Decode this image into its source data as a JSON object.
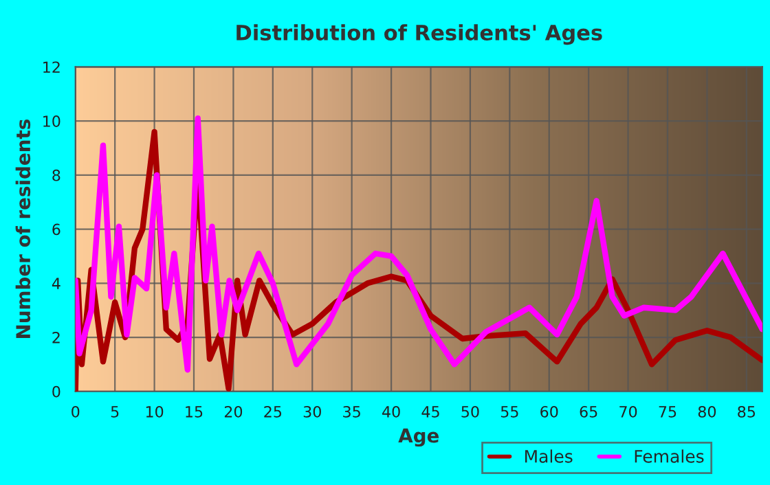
{
  "chart_data": {
    "type": "line",
    "title": "Distribution of Residents' Ages",
    "xlabel": "Age",
    "ylabel": "Number of residents",
    "xlim": [
      0,
      87
    ],
    "xticks": [
      0,
      5,
      10,
      15,
      20,
      25,
      30,
      35,
      40,
      45,
      50,
      55,
      60,
      65,
      70,
      75,
      80,
      85
    ],
    "ylim": [
      0,
      12
    ],
    "yticks": [
      0,
      2,
      4,
      6,
      8,
      10,
      12
    ],
    "grid": true,
    "legend": "bottom right",
    "marker": "none",
    "line_style": "solid",
    "series": [
      {
        "name": "Males",
        "color": "#aa0000",
        "x": [
          0,
          0.3,
          0.8,
          2,
          3.5,
          5,
          6.3,
          7.5,
          8.5,
          10,
          11.5,
          13,
          14.2,
          15.5,
          17,
          18.3,
          19.4,
          20.5,
          21.5,
          23.3,
          25,
          27.5,
          30,
          33,
          37,
          40,
          42,
          45,
          49,
          52,
          57,
          61,
          64,
          66,
          68,
          70,
          73,
          76,
          80,
          83,
          87
        ],
        "values": [
          0,
          4.1,
          1,
          4.5,
          1.1,
          3.3,
          2,
          5.3,
          6,
          9.6,
          2.3,
          1.9,
          2.5,
          8,
          1.2,
          2.1,
          0.1,
          4.1,
          2.1,
          4.1,
          3.2,
          2.1,
          2.5,
          3.3,
          4,
          4.25,
          4.1,
          2.8,
          1.95,
          2.05,
          2.15,
          1.1,
          2.5,
          3.1,
          4.15,
          3,
          1,
          1.9,
          2.25,
          2,
          1.15
        ]
      },
      {
        "name": "Females",
        "color": "#ff00ff",
        "x": [
          0,
          0.5,
          2,
          3.5,
          4.5,
          5.5,
          6.5,
          7.5,
          9,
          10.3,
          11.5,
          12.5,
          14.2,
          15.5,
          16.5,
          17.3,
          18.5,
          19.5,
          20.5,
          23.2,
          25,
          28,
          32,
          35,
          38,
          40,
          42,
          45,
          48,
          52,
          57.5,
          61,
          63.5,
          66,
          68,
          69.5,
          72,
          76,
          78,
          82,
          87
        ],
        "values": [
          4.1,
          1.4,
          3,
          9.1,
          3.5,
          6.1,
          2.1,
          4.2,
          3.8,
          8,
          3.1,
          5.1,
          0.8,
          10.1,
          4.1,
          6.1,
          2.1,
          4.1,
          3,
          5.1,
          4,
          1,
          2.5,
          4.3,
          5.1,
          5,
          4.3,
          2.3,
          1,
          2.2,
          3.1,
          2.1,
          3.5,
          7.05,
          3.5,
          2.8,
          3.1,
          3,
          3.5,
          5.1,
          2.3
        ]
      }
    ]
  }
}
